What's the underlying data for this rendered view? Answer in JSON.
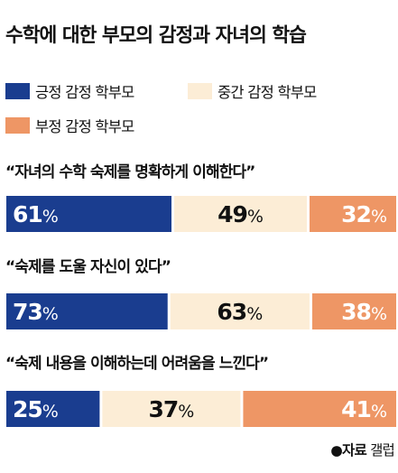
{
  "title": "수학에 대한 부모의 감정과 자녀의 학습",
  "legend": [
    {
      "label": "긍정 감정 학부모",
      "color": "#1a3d8f"
    },
    {
      "label": "중간 감정 학부모",
      "color": "#fcedd6"
    },
    {
      "label": "부정 감정 학부모",
      "color": "#ee9665"
    }
  ],
  "chart_data": {
    "type": "bar",
    "orientation": "horizontal",
    "layout": "segmented",
    "unit": "%",
    "categories": [
      "“자녀의 수학 숙제를 명확하게 이해한다”",
      "“숙제를 도울 자신이 있다”",
      "“숙제 내용을 이해하는데 어려움을 느낀다”"
    ],
    "series": [
      {
        "name": "긍정 감정 학부모",
        "color": "#1a3d8f",
        "label_color": "#ffffff",
        "values": [
          61,
          73,
          25
        ]
      },
      {
        "name": "중간 감정 학부모",
        "color": "#fcedd6",
        "label_color": "#111111",
        "values": [
          49,
          63,
          37
        ]
      },
      {
        "name": "부정 감정 학부모",
        "color": "#ee9665",
        "label_color": "#ffffff",
        "values": [
          32,
          38,
          41
        ]
      }
    ]
  },
  "source": {
    "prefix": "●자료",
    "name": "갤럽"
  }
}
